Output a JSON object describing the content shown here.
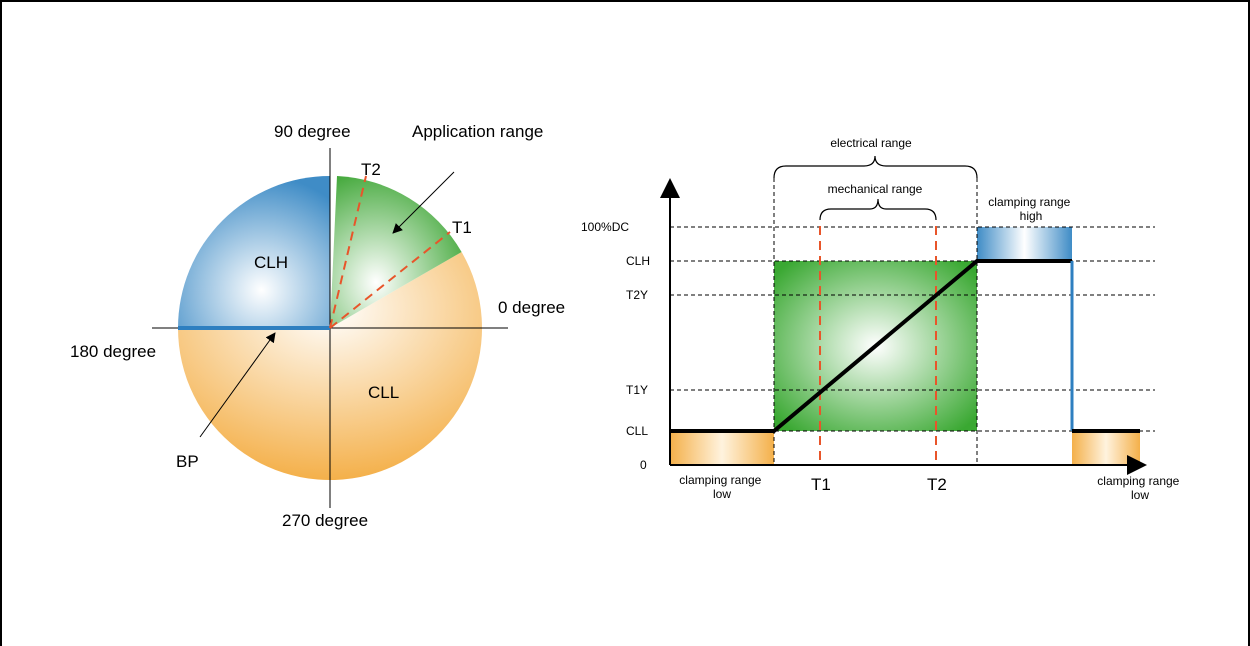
{
  "left_diagram": {
    "label_90": "90 degree",
    "label_0": "0 degree",
    "label_180": "180 degree",
    "label_270": "270 degree",
    "label_application_range": "Application range",
    "label_t1": "T1",
    "label_t2": "T2",
    "label_clh": "CLH",
    "label_cll": "CLL",
    "label_bp": "BP"
  },
  "right_diagram": {
    "label_electrical_range": "electrical range",
    "label_mechanical_range": "mechanical range",
    "label_clamping_high": [
      "clamping range",
      "high"
    ],
    "label_clamping_low_left": [
      "clamping range",
      "low"
    ],
    "label_clamping_low_right": [
      "clamping range",
      "low"
    ],
    "y_labels": {
      "dc100": "100%DC",
      "clh": "CLH",
      "t2y": "T2Y",
      "t1y": "T1Y",
      "cll": "CLL",
      "zero": "0"
    },
    "x_labels": {
      "t1": "T1",
      "t2": "T2"
    }
  },
  "colors": {
    "blue": "#3a8bc8",
    "orange": "#f5b24a",
    "green": "#3aa832",
    "red_dashed": "#e8552a",
    "axis_line": "#000000"
  }
}
